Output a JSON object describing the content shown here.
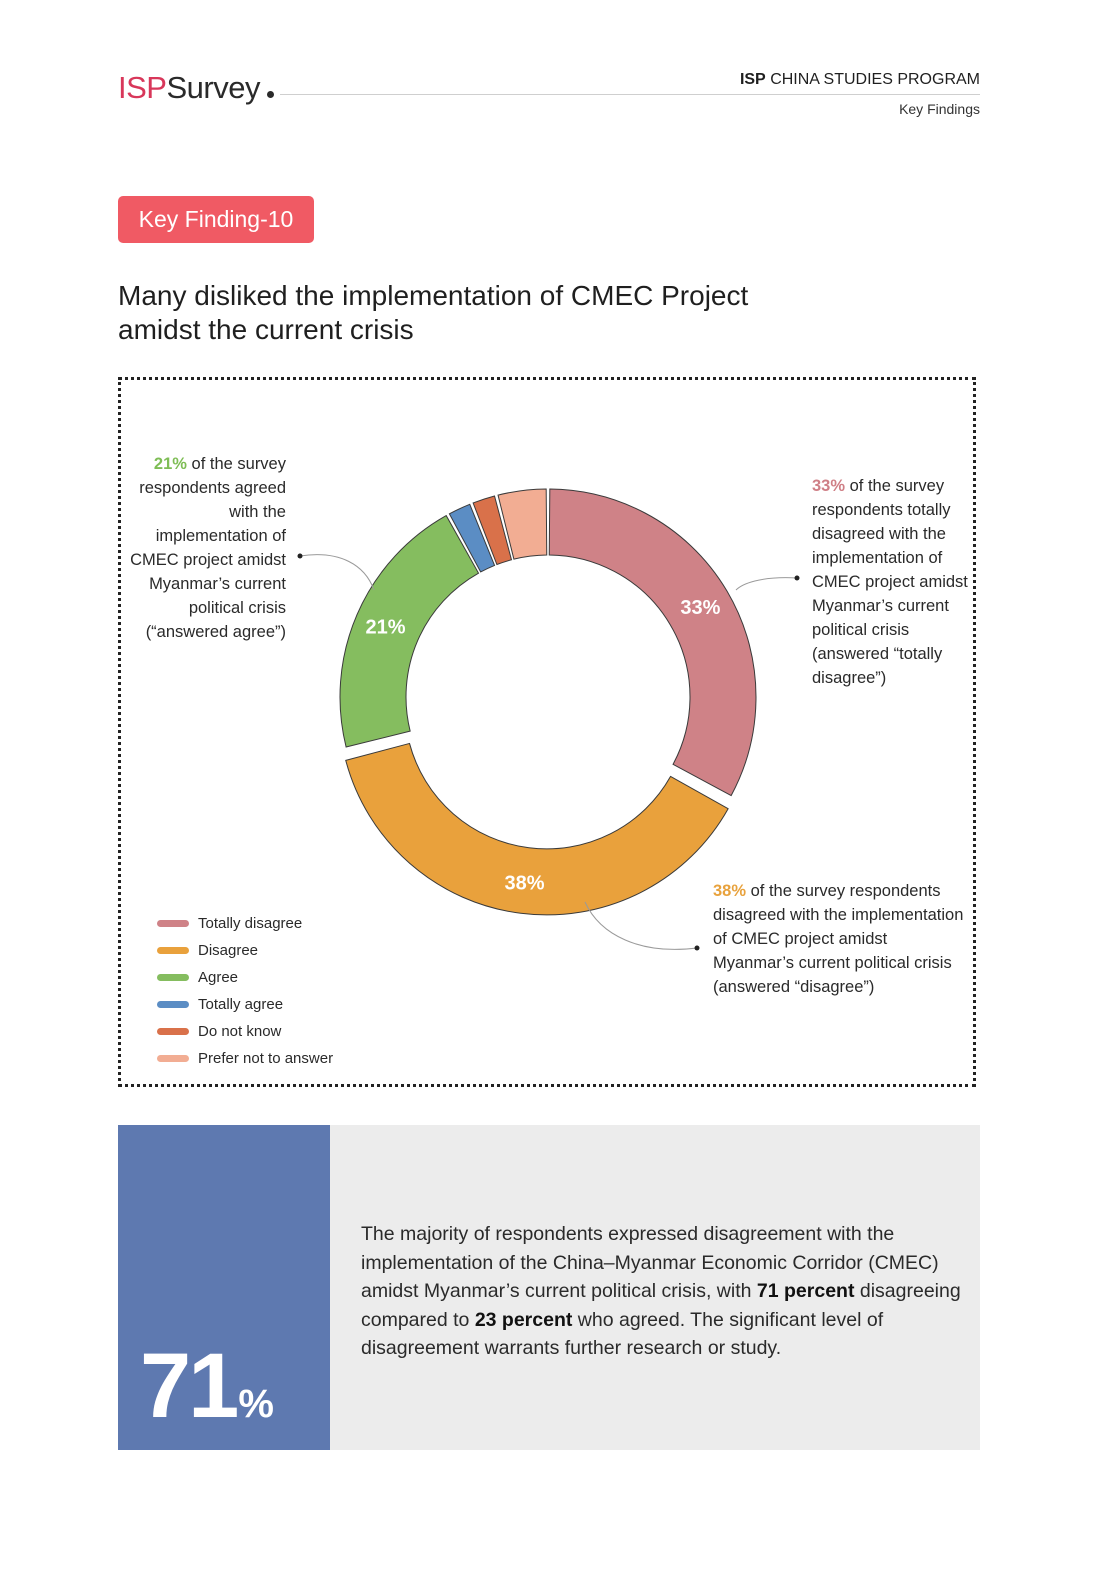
{
  "header": {
    "logo_isp": "ISP",
    "logo_survey": "Survey",
    "program_bold": "ISP",
    "program_rest": "CHINA STUDIES PROGRAM",
    "subtitle": "Key Findings"
  },
  "badge": "Key Finding-10",
  "title_line1": "Many disliked the implementation of CMEC Project",
  "title_line2": "amidst the current crisis",
  "annotations": {
    "agree_pct": "21%",
    "agree_text": " of the survey respondents agreed with the implementation of CMEC project amidst Myanmar’s current political crisis (“answered agree”)",
    "totally_disagree_pct": "33%",
    "totally_disagree_text": " of the survey respondents totally disagreed with the implementation of CMEC project amidst Myanmar’s current political crisis (answered “totally disagree”)",
    "disagree_pct": "38%",
    "disagree_text": " of the survey respondents disagreed with the implementation of CMEC project amidst Myanmar’s current political crisis (answered “disagree”)"
  },
  "colors": {
    "totally_disagree": "#cf8287",
    "disagree": "#e9a13c",
    "agree": "#85bd5f",
    "totally_agree": "#5b8dc4",
    "do_not_know": "#d9714a",
    "prefer_not": "#f2ad93"
  },
  "chart_data": {
    "type": "pie",
    "title": "",
    "categories": [
      "Totally disagree",
      "Disagree",
      "Agree",
      "Totally agree",
      "Do not know",
      "Prefer not to answer"
    ],
    "values": [
      33,
      38,
      21,
      2,
      2,
      4
    ],
    "data_labels": [
      "33%",
      "38%",
      "21%",
      "",
      "",
      ""
    ],
    "legend_position": "bottom-left"
  },
  "summary": {
    "big_number": "71",
    "big_unit": "%",
    "text_part1": "The majority of respondents expressed disagreement with the implementation of the China–Myanmar Economic Corridor (CMEC) amidst Myanmar’s current political crisis, with ",
    "bold1": "71 percent",
    "text_part2": " disagreeing compared to ",
    "bold2": "23 percent",
    "text_part3": " who agreed. The significant level of disagreement warrants further research or study."
  }
}
